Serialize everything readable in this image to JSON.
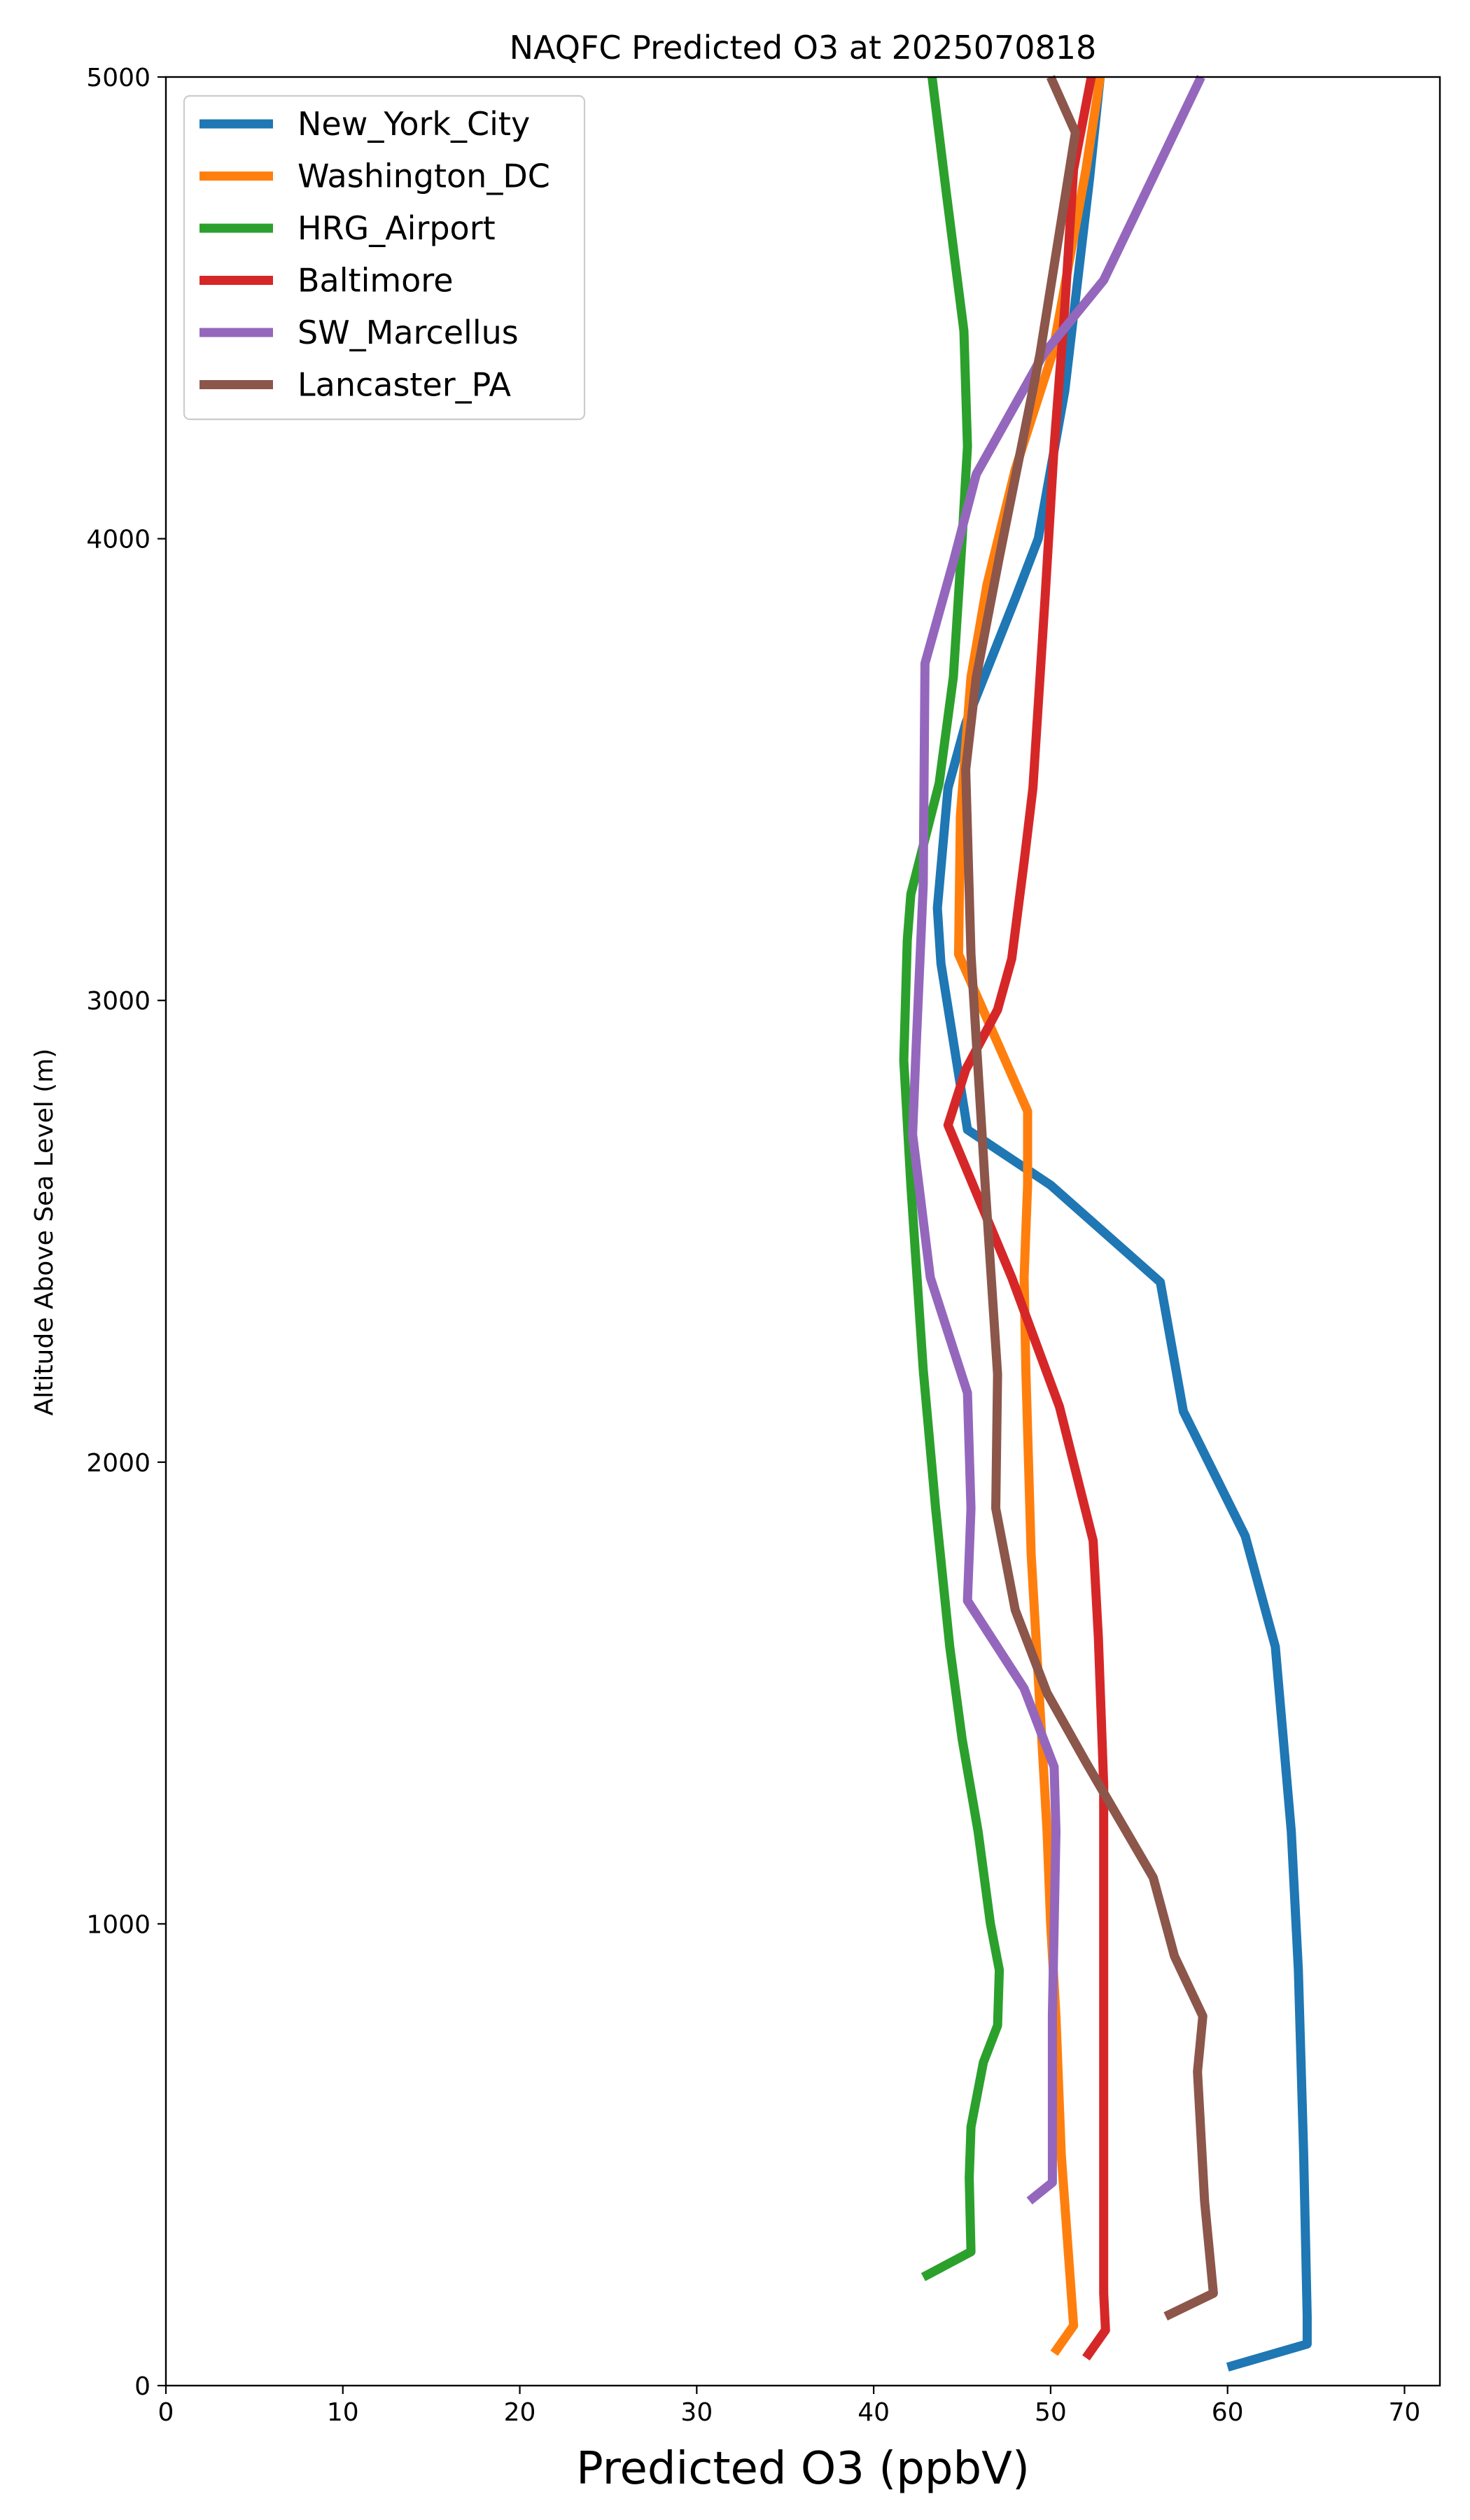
{
  "chart_data": {
    "type": "line",
    "title": "NAQFC Predicted O3 at 2025070818",
    "xlabel": "Predicted O3 (ppbV)",
    "ylabel": "Altitude Above Sea Level (m)",
    "xlim": [
      0,
      72
    ],
    "ylim": [
      0,
      5000
    ],
    "xticks": [
      0,
      10,
      20,
      30,
      40,
      50,
      60,
      70
    ],
    "yticks": [
      0,
      1000,
      2000,
      3000,
      4000,
      5000
    ],
    "grid": false,
    "legend_position": "top-left",
    "series": [
      {
        "name": "New_York_City",
        "color": "#1f77b4",
        "points": [
          [
            60.0,
            40
          ],
          [
            64.5,
            90
          ],
          [
            64.5,
            150
          ],
          [
            64.3,
            500
          ],
          [
            64.0,
            900
          ],
          [
            63.6,
            1200
          ],
          [
            62.7,
            1600
          ],
          [
            61.0,
            1840
          ],
          [
            57.5,
            2110
          ],
          [
            56.2,
            2390
          ],
          [
            50.0,
            2600
          ],
          [
            45.3,
            2720
          ],
          [
            43.8,
            3080
          ],
          [
            43.6,
            3200
          ],
          [
            44.2,
            3460
          ],
          [
            45.2,
            3600
          ],
          [
            48.0,
            3870
          ],
          [
            49.3,
            4000
          ],
          [
            50.8,
            4320
          ],
          [
            52.2,
            4780
          ],
          [
            52.8,
            5000
          ]
        ]
      },
      {
        "name": "Washington_DC",
        "color": "#ff7f0e",
        "points": [
          [
            50.2,
            70
          ],
          [
            51.3,
            130
          ],
          [
            50.6,
            500
          ],
          [
            50.3,
            800
          ],
          [
            50.0,
            1000
          ],
          [
            49.8,
            1200
          ],
          [
            49.5,
            1400
          ],
          [
            48.9,
            1800
          ],
          [
            48.6,
            2200
          ],
          [
            48.5,
            2400
          ],
          [
            48.7,
            2600
          ],
          [
            48.7,
            2760
          ],
          [
            44.8,
            3100
          ],
          [
            44.9,
            3400
          ],
          [
            45.5,
            3700
          ],
          [
            46.4,
            3900
          ],
          [
            48.0,
            4150
          ],
          [
            50.1,
            4400
          ],
          [
            52.0,
            4800
          ],
          [
            52.8,
            5000
          ]
        ]
      },
      {
        "name": "HRG_Airport",
        "color": "#2ca02c",
        "points": [
          [
            42.8,
            235
          ],
          [
            45.5,
            290
          ],
          [
            45.4,
            450
          ],
          [
            45.5,
            560
          ],
          [
            46.2,
            700
          ],
          [
            47.0,
            780
          ],
          [
            47.1,
            900
          ],
          [
            46.6,
            1000
          ],
          [
            45.9,
            1200
          ],
          [
            45.0,
            1400
          ],
          [
            44.3,
            1600
          ],
          [
            43.5,
            1900
          ],
          [
            42.8,
            2200
          ],
          [
            42.1,
            2600
          ],
          [
            41.7,
            2870
          ],
          [
            41.9,
            3130
          ],
          [
            42.1,
            3230
          ],
          [
            43.7,
            3470
          ],
          [
            44.5,
            3700
          ],
          [
            45.0,
            4000
          ],
          [
            45.3,
            4200
          ],
          [
            45.1,
            4450
          ],
          [
            44.1,
            4750
          ],
          [
            43.3,
            5000
          ]
        ]
      },
      {
        "name": "Baltimore",
        "color": "#d62728",
        "points": [
          [
            52.0,
            60
          ],
          [
            53.1,
            120
          ],
          [
            53.0,
            200
          ],
          [
            53.0,
            1100
          ],
          [
            53.0,
            1300
          ],
          [
            52.7,
            1620
          ],
          [
            52.4,
            1830
          ],
          [
            50.5,
            2120
          ],
          [
            47.8,
            2400
          ],
          [
            44.2,
            2730
          ],
          [
            45.2,
            2850
          ],
          [
            47.0,
            2980
          ],
          [
            47.8,
            3090
          ],
          [
            48.5,
            3300
          ],
          [
            49.0,
            3460
          ],
          [
            49.7,
            3880
          ],
          [
            50.2,
            4200
          ],
          [
            50.8,
            4500
          ],
          [
            51.3,
            4800
          ],
          [
            52.3,
            5000
          ]
        ]
      },
      {
        "name": "SW_Marcellus",
        "color": "#9467bd",
        "points": [
          [
            48.8,
            400
          ],
          [
            50.1,
            440
          ],
          [
            50.1,
            800
          ],
          [
            50.3,
            1200
          ],
          [
            50.2,
            1340
          ],
          [
            48.5,
            1510
          ],
          [
            45.3,
            1700
          ],
          [
            45.5,
            1900
          ],
          [
            45.3,
            2150
          ],
          [
            43.2,
            2400
          ],
          [
            42.2,
            2710
          ],
          [
            42.4,
            2900
          ],
          [
            42.8,
            3250
          ],
          [
            42.9,
            3730
          ],
          [
            44.5,
            3950
          ],
          [
            45.8,
            4140
          ],
          [
            49.6,
            4400
          ],
          [
            53.0,
            4560
          ],
          [
            58.5,
            5000
          ]
        ]
      },
      {
        "name": "Lancaster_PA",
        "color": "#8c564b",
        "points": [
          [
            56.5,
            150
          ],
          [
            59.2,
            200
          ],
          [
            58.7,
            400
          ],
          [
            58.3,
            680
          ],
          [
            58.6,
            800
          ],
          [
            57.0,
            930
          ],
          [
            55.8,
            1100
          ],
          [
            52.0,
            1350
          ],
          [
            49.8,
            1500
          ],
          [
            48.0,
            1680
          ],
          [
            46.9,
            1900
          ],
          [
            47.0,
            2190
          ],
          [
            46.3,
            2600
          ],
          [
            45.5,
            3100
          ],
          [
            45.2,
            3500
          ],
          [
            45.8,
            3700
          ],
          [
            47.1,
            3960
          ],
          [
            49.4,
            4400
          ],
          [
            51.4,
            4880
          ],
          [
            50.0,
            5000
          ]
        ]
      }
    ]
  }
}
